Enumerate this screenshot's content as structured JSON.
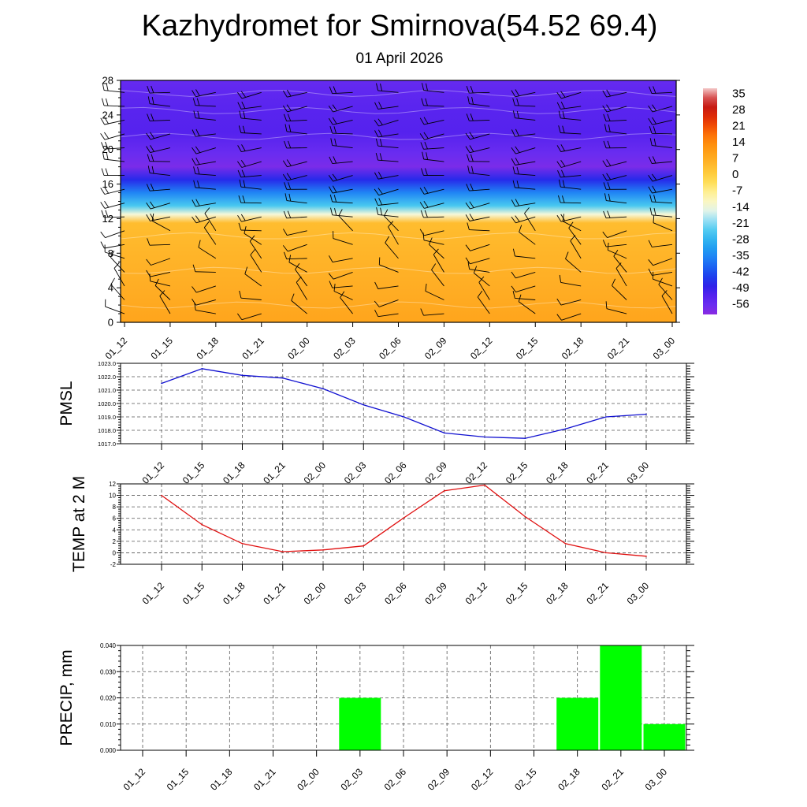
{
  "title": "Kazhydromet for Smirnova(54.52 69.4)",
  "subtitle": "01 April 2026",
  "colors": {
    "pmsl_line": "#1010d0",
    "temp_line": "#e01010",
    "precip_bar": "#00ff00",
    "grid": "#555555"
  },
  "chart_data": [
    {
      "type": "heatmap",
      "name": "cross-section",
      "times": [
        "01_12",
        "01_15",
        "01_18",
        "01_21",
        "02_00",
        "02_03",
        "02_06",
        "02_09",
        "02_12",
        "02_15",
        "02_18",
        "02_21",
        "03_00"
      ],
      "y_ticks": [
        0,
        4,
        8,
        12,
        16,
        20,
        24,
        28
      ],
      "ylim": [
        0,
        28
      ],
      "colorbar_labels": [
        "35",
        "28",
        "21",
        "14",
        "7",
        "0",
        "-7",
        "-14",
        "-21",
        "-28",
        "-35",
        "-42",
        "-49",
        "-56"
      ],
      "colorbar_range": [
        -60,
        38
      ],
      "temperature_profile": [
        {
          "z": 0,
          "value": 9
        },
        {
          "z": 4,
          "value": 7
        },
        {
          "z": 8,
          "value": 5.5
        },
        {
          "z": 11.5,
          "value": 4
        },
        {
          "z": 12.5,
          "value": -13
        },
        {
          "z": 13.5,
          "value": -24
        },
        {
          "z": 15,
          "value": -35
        },
        {
          "z": 16.5,
          "value": -46
        },
        {
          "z": 18,
          "value": -58
        },
        {
          "z": 19.5,
          "value": -56
        },
        {
          "z": 22,
          "value": -52
        },
        {
          "z": 25,
          "value": -53
        },
        {
          "z": 28,
          "value": -55
        }
      ],
      "wind_levels": [
        1,
        2.6,
        4.2,
        5.8,
        7.4,
        9,
        10.6,
        12.2,
        13.8,
        15.4,
        17,
        18.6,
        20.2,
        21.8,
        23.4,
        25,
        26.6
      ],
      "wind_barbs": true
    },
    {
      "type": "line",
      "name": "PMSL",
      "ylabel": "PMSL",
      "categories": [
        "01_12",
        "01_15",
        "01_18",
        "01_21",
        "02_00",
        "02_03",
        "02_06",
        "02_09",
        "02_12",
        "02_15",
        "02_18",
        "02_21",
        "03_00"
      ],
      "values": [
        1021.5,
        1022.6,
        1022.1,
        1021.9,
        1021.1,
        1019.9,
        1019.0,
        1017.8,
        1017.5,
        1017.4,
        1018.1,
        1019.0,
        1019.2
      ],
      "ylim": [
        1017.0,
        1023.0
      ],
      "y_ticks": [
        "1017.0",
        "1018.0",
        "1019.0",
        "1020.0",
        "1021.0",
        "1022.0",
        "1023.0"
      ],
      "grid": true
    },
    {
      "type": "line",
      "name": "TEMP at 2 M",
      "ylabel": "TEMP at 2 M",
      "categories": [
        "01_12",
        "01_15",
        "01_18",
        "01_21",
        "02_00",
        "02_03",
        "02_06",
        "02_09",
        "02_12",
        "02_15",
        "02_18",
        "02_21",
        "03_00"
      ],
      "values": [
        10.0,
        4.9,
        1.6,
        0.2,
        0.5,
        1.2,
        6.1,
        10.8,
        11.8,
        6.3,
        1.6,
        0.0,
        -0.6
      ],
      "ylim": [
        -2,
        12
      ],
      "y_ticks": [
        "-2",
        "0",
        "2",
        "4",
        "6",
        "8",
        "10",
        "12"
      ],
      "grid": true
    },
    {
      "type": "bar",
      "name": "PRECIP, mm",
      "ylabel": "PRECIP, mm",
      "categories": [
        "01_12",
        "01_15",
        "01_18",
        "01_21",
        "02_00",
        "02_03",
        "02_06",
        "02_09",
        "02_12",
        "02_15",
        "02_18",
        "02_21",
        "03_00"
      ],
      "values": [
        0,
        0,
        0,
        0,
        0,
        0.02,
        0,
        0,
        0,
        0,
        0.02,
        0.04,
        0.01
      ],
      "ylim": [
        0,
        0.04
      ],
      "y_ticks": [
        "0.000",
        "0.010",
        "0.020",
        "0.030",
        "0.040"
      ],
      "grid": true
    }
  ]
}
